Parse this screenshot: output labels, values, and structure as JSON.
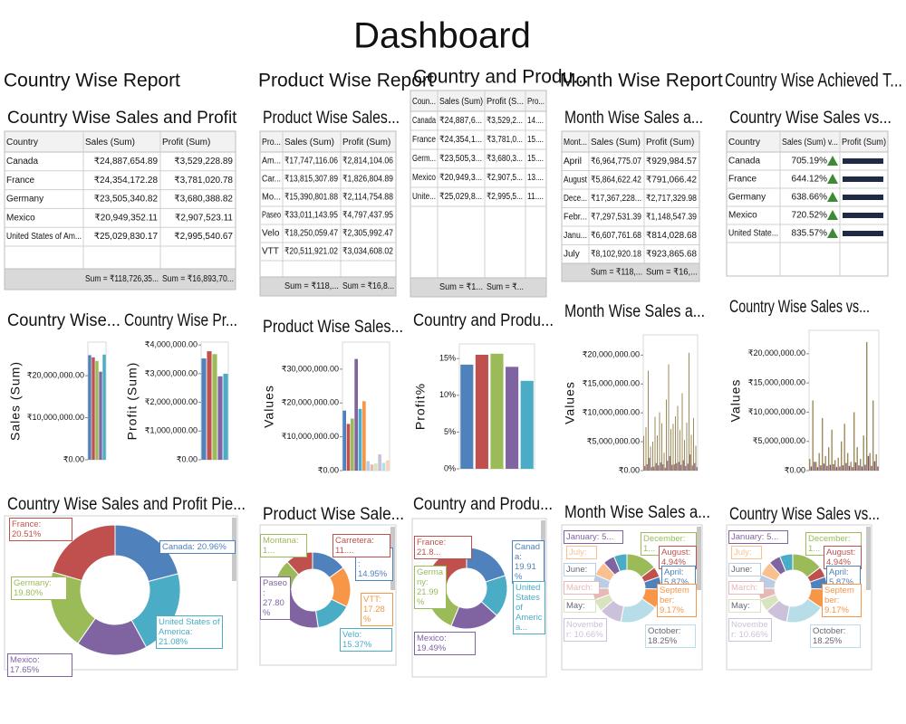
{
  "title": "Dashboard",
  "panels": [
    {
      "header": "Country Wise Report",
      "table": {
        "title": "Country Wise Sales and Profit",
        "columns": [
          "Country",
          "Sales (Sum)",
          "Profit (Sum)"
        ],
        "rows": [
          [
            "Canada",
            "₹24,887,654.89",
            "₹3,529,228.89"
          ],
          [
            "France",
            "₹24,354,172.28",
            "₹3,781,020.78"
          ],
          [
            "Germany",
            "₹23,505,340.82",
            "₹3,680,388.82"
          ],
          [
            "Mexico",
            "₹20,949,352.11",
            "₹2,907,523.11"
          ],
          [
            "United States of Am...",
            "₹25,029,830.17",
            "₹2,995,540.67"
          ]
        ],
        "footer": [
          "Sum = ₹118,726,35...",
          "Sum = ₹16,893,70..."
        ]
      },
      "charts": [
        {
          "type": "bar",
          "title": "Country Wise...",
          "y_label": "Sales (Sum)",
          "ylim": [
            0,
            28000000
          ],
          "yticks": [
            {
              "value": 0,
              "label": "₹0.00"
            },
            {
              "value": 10000000,
              "label": "₹10,000,000.00"
            },
            {
              "value": 20000000,
              "label": "₹20,000,000.00"
            }
          ],
          "series": [
            {
              "colors": [
                "#4f81bd",
                "#c0504d",
                "#9bbb59",
                "#8064a2",
                "#4bacc6"
              ],
              "values": [
                24887654.89,
                24354172.28,
                23505340.82,
                20949352.11,
                25029830.17
              ]
            }
          ]
        },
        {
          "type": "bar",
          "title": "Country Wise Pr...",
          "y_label": "Profit (Sum)",
          "ylim": [
            0,
            4100000
          ],
          "yticks": [
            {
              "value": 0,
              "label": "₹0.00"
            },
            {
              "value": 1000000,
              "label": "₹1,000,000.00"
            },
            {
              "value": 2000000,
              "label": "₹2,000,000.00"
            },
            {
              "value": 3000000,
              "label": "₹3,000,000.00"
            },
            {
              "value": 4000000,
              "label": "₹4,000,000.00"
            }
          ],
          "series": [
            {
              "colors": [
                "#4f81bd",
                "#c0504d",
                "#9bbb59",
                "#8064a2",
                "#4bacc6"
              ],
              "values": [
                3529228.89,
                3781020.78,
                3680388.82,
                2907523.11,
                2995540.67
              ]
            }
          ]
        }
      ],
      "pie": {
        "title": "Country Wise Sales and Profit Pie...",
        "labels": [
          "Canada: 20.96%",
          "United States of America: 21.08%",
          "Mexico: 17.65%",
          "Germany: 19.80%",
          "France: 20.51%"
        ],
        "values": [
          20.96,
          21.08,
          17.65,
          19.8,
          20.51
        ],
        "colors": [
          "#4f81bd",
          "#4bacc6",
          "#8064a2",
          "#9bbb59",
          "#c0504d"
        ]
      }
    },
    {
      "header": "Product Wise Report",
      "table": {
        "title": "Product Wise Sales...",
        "columns": [
          "Pro...",
          "Sales (Sum)",
          "Profit (Sum)"
        ],
        "rows": [
          [
            "Am...",
            "₹17,747,116.06",
            "₹2,814,104.06"
          ],
          [
            "Car...",
            "₹13,815,307.89",
            "₹1,826,804.89"
          ],
          [
            "Mo...",
            "₹15,390,801.88",
            "₹2,114,754.88"
          ],
          [
            "Paseo",
            "₹33,011,143.95",
            "₹4,797,437.95"
          ],
          [
            "Velo",
            "₹18,250,059.47",
            "₹2,305,992.47"
          ],
          [
            "VTT",
            "₹20,511,921.02",
            "₹3,034,608.02"
          ]
        ],
        "footer": [
          "Sum = ₹118,...",
          "Sum = ₹16,8..."
        ]
      },
      "charts": [
        {
          "type": "bar",
          "title": "Product Wise Sales...",
          "y_label": "Values",
          "ylim": [
            0,
            38000000
          ],
          "yticks": [
            {
              "value": 0,
              "label": "₹0.00"
            },
            {
              "value": 10000000,
              "label": "₹10,000,000.00"
            },
            {
              "value": 20000000,
              "label": "₹20,000,000.00"
            },
            {
              "value": 30000000,
              "label": "₹30,000,000.00"
            }
          ],
          "series": [
            {
              "colors": [
                "#4f81bd",
                "#c0504d",
                "#9bbb59",
                "#8064a2",
                "#4bacc6",
                "#f79646",
                "#b9cde5",
                "#e6b9b8",
                "#d7e4bd",
                "#ccc1da",
                "#b7dee8",
                "#fcd5b5"
              ],
              "values": [
                17747116.06,
                13815307.89,
                15390801.88,
                33011143.95,
                18250059.47,
                20511921.02,
                2814104.06,
                1826804.89,
                2114754.88,
                4797437.95,
                2305992.47,
                3034608.02
              ]
            }
          ]
        }
      ],
      "pie": {
        "title": "Product Wise Sale...",
        "labels": [
          "Amarilla: 14.95%",
          "VTT: 17.28%",
          "Velo: 15.37%",
          "Paseo: 27.80%",
          "Montana: 1...",
          "Carretera: 11...."
        ],
        "values": [
          14.95,
          17.28,
          15.37,
          27.8,
          12.96,
          11.64
        ],
        "colors": [
          "#4f81bd",
          "#f79646",
          "#4bacc6",
          "#8064a2",
          "#9bbb59",
          "#c0504d"
        ]
      }
    },
    {
      "header": "Country and Produ...",
      "table": {
        "columns": [
          "Coun...",
          "Sales (Sum)",
          "Profit (S...",
          "Pro..."
        ],
        "rows": [
          [
            "Canada",
            "₹24,887,6...",
            "₹3,529,2...",
            "14...."
          ],
          [
            "France",
            "₹24,354,1...",
            "₹3,781,0...",
            "15...."
          ],
          [
            "Germ...",
            "₹23,505,3...",
            "₹3,680,3...",
            "15...."
          ],
          [
            "Mexico",
            "₹20,949,3...",
            "₹2,907,5...",
            "13...."
          ],
          [
            "Unite...",
            "₹25,029,8...",
            "₹2,995,5...",
            "11...."
          ]
        ],
        "footer": [
          "Sum = ₹1...",
          "Sum = ₹..."
        ]
      },
      "charts": [
        {
          "type": "bar",
          "title": "Country and Produ...",
          "y_label": "Profit%",
          "ylim": [
            0,
            17
          ],
          "yticks": [
            {
              "value": 0,
              "label": "0%"
            },
            {
              "value": 5,
              "label": "5%"
            },
            {
              "value": 10,
              "label": "10%"
            },
            {
              "value": 15,
              "label": "15%"
            }
          ],
          "series": [
            {
              "colors": [
                "#4f81bd",
                "#c0504d",
                "#9bbb59",
                "#8064a2",
                "#4bacc6"
              ],
              "values": [
                14.18,
                15.52,
                15.66,
                13.88,
                11.97
              ]
            }
          ]
        }
      ],
      "pie": {
        "title": "Country and Produ...",
        "labels": [
          "Canada: 19.91%",
          "United States of America...",
          "Mexico: 19.49%",
          "Germany: 21.99%",
          "France: 21.8..."
        ],
        "values": [
          19.91,
          16.81,
          19.49,
          21.99,
          21.8
        ],
        "colors": [
          "#4f81bd",
          "#4bacc6",
          "#8064a2",
          "#9bbb59",
          "#c0504d"
        ]
      }
    },
    {
      "header": "Month Wise Report",
      "table": {
        "title": "Month Wise Sales a...",
        "columns": [
          "Mont...",
          "Sales (Sum)",
          "Profit (Sum)"
        ],
        "rows": [
          [
            "April",
            "₹6,964,775.07",
            "₹929,984.57"
          ],
          [
            "August",
            "₹5,864,622.42",
            "₹791,066.42"
          ],
          [
            "Dece...",
            "₹17,367,228...",
            "₹2,717,329.98"
          ],
          [
            "Febr...",
            "₹7,297,531.39",
            "₹1,148,547.39"
          ],
          [
            "Janu...",
            "₹6,607,761.68",
            "₹814,028.68"
          ],
          [
            "July",
            "₹8,102,920.18",
            "₹923,865.68"
          ]
        ],
        "footer": [
          "Sum = ₹118,...",
          "Sum = ₹16,..."
        ]
      },
      "charts": [
        {
          "type": "bar",
          "title": "Month Wise Sales a...",
          "y_label": "Values",
          "ylim": [
            0,
            23500000
          ],
          "yticks": [
            {
              "value": 0,
              "label": "₹0.00"
            },
            {
              "value": 5000000,
              "label": "₹5,000,000.00"
            },
            {
              "value": 10000000,
              "label": "₹10,000,000.00"
            },
            {
              "value": 15000000,
              "label": "₹15,000,000.00"
            },
            {
              "value": 20000000,
              "label": "₹20,000,000.00"
            }
          ],
          "series": [
            {
              "color": "#9c8a5a",
              "values": [
                6000000,
                7500000,
                17300000,
                4200000,
                5000000,
                9300000,
                6100000,
                10100000,
                8200000,
                3100000,
                12300000,
                18400000,
                7200000,
                8100000,
                9400000,
                11200000,
                7000000,
                13400000,
                5300000,
                8300000,
                20400000,
                6200000,
                9100000,
                4300000
              ]
            },
            {
              "color": "#7b4f6e",
              "values": [
                800000,
                1100000,
                2200000,
                600000,
                700000,
                1300000,
                900000,
                1400000,
                1100000,
                500000,
                1700000,
                2500000,
                1000000,
                1100000,
                1300000,
                1500000,
                1000000,
                1800000,
                800000,
                1200000,
                2800000,
                900000,
                1300000,
                600000
              ]
            }
          ]
        }
      ],
      "pie": {
        "title": "Month Wise Sales a...",
        "labels": [
          "December: 1...",
          "August: 4.94%",
          "April: 5.87%",
          "September: 9.17%",
          "October: 18.25%",
          "November: 10.66%",
          "May:",
          "March:",
          "June:",
          "July:",
          "January: 5...",
          null
        ],
        "values": [
          14.63,
          4.94,
          5.87,
          9.17,
          18.25,
          10.66,
          6.0,
          5.5,
          6.44,
          6.82,
          5.57,
          6.15
        ],
        "colors": [
          "#9bbb59",
          "#c0504d",
          "#4f81bd",
          "#f79646",
          "#b7dee8",
          "#ccc1da",
          "#d7e4bd",
          "#e6b9b8",
          "#b9cde5",
          "#fac090",
          "#8064a2",
          "#4bacc6"
        ]
      }
    },
    {
      "header": "Country Wise Achieved T...",
      "table": {
        "title": "Country Wise Sales vs...",
        "columns": [
          "Country",
          "Sales (Sum) v...",
          "Profit (Sum)"
        ],
        "rows": [
          [
            "Canada",
            "705.19%"
          ],
          [
            "France",
            "644.12%"
          ],
          [
            "Germany",
            "638.66%"
          ],
          [
            "Mexico",
            "720.52%"
          ],
          [
            "United State...",
            "835.57%"
          ]
        ]
      },
      "charts": [
        {
          "type": "bar",
          "title": "Country Wise Sales vs...",
          "y_label": "Values",
          "ylim": [
            0,
            24000000
          ],
          "yticks": [
            {
              "value": 0,
              "label": "₹0.00"
            },
            {
              "value": 5000000,
              "label": "₹5,000,000.00"
            },
            {
              "value": 10000000,
              "label": "₹10,000,000.00"
            },
            {
              "value": 15000000,
              "label": "₹15,000,000.00"
            },
            {
              "value": 20000000,
              "label": "₹20,000,000.00"
            }
          ],
          "series": [
            {
              "color": "#9c8a5a",
              "values": [
                2000000,
                12000000,
                1500000,
                3000000,
                9000000,
                2500000,
                4000000,
                7000000,
                1800000,
                2200000,
                5000000,
                8000000,
                3000000,
                1500000,
                10000000,
                4000000,
                2000000,
                6000000,
                22000000,
                3000000,
                12000000,
                2800000
              ]
            },
            {
              "color": "#7b4f6e",
              "values": [
                700000,
                1500000,
                600000,
                900000,
                1200000,
                800000,
                1000000,
                1100000,
                600000,
                700000,
                900000,
                1300000,
                800000,
                600000,
                1400000,
                900000,
                700000,
                1000000,
                2500000,
                800000,
                1600000,
                700000
              ]
            }
          ]
        }
      ],
      "pie": {
        "title": "Country Wise Sales vs...",
        "labels": [
          "December: 1...",
          "August: 4.94%",
          "April: 5.87%",
          "September: 9.17%",
          "October: 18.25%",
          "November: 10.66%",
          "May:",
          "March:",
          "June:",
          "July:",
          "January: 5...",
          null
        ],
        "values": [
          14.63,
          4.94,
          5.87,
          9.17,
          18.25,
          10.66,
          6.0,
          5.5,
          6.44,
          6.82,
          5.57,
          6.15
        ],
        "colors": [
          "#9bbb59",
          "#c0504d",
          "#4f81bd",
          "#f79646",
          "#b7dee8",
          "#ccc1da",
          "#d7e4bd",
          "#e6b9b8",
          "#b9cde5",
          "#fac090",
          "#8064a2",
          "#4bacc6"
        ]
      }
    }
  ]
}
